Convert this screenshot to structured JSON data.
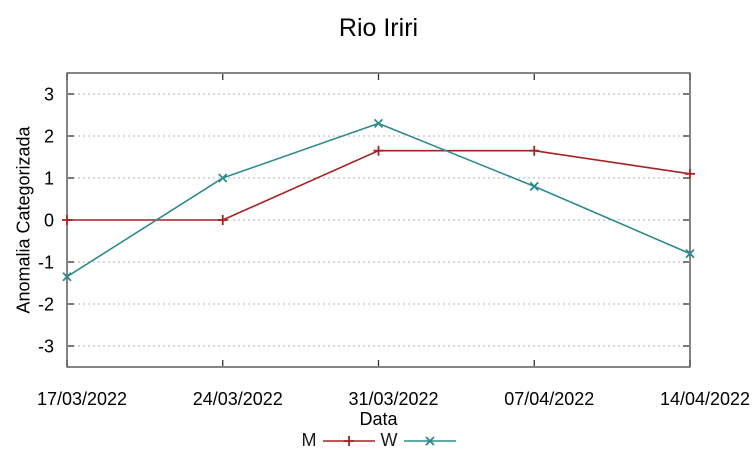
{
  "chart_data": {
    "type": "line",
    "title": "Rio Iriri",
    "xlabel": "Data",
    "ylabel": "Anomalia Categorizada",
    "x_categories": [
      "17/03/2022",
      "24/03/2022",
      "31/03/2022",
      "07/04/2022",
      "14/04/2022"
    ],
    "yticks": [
      -3,
      -2,
      -1,
      0,
      1,
      2,
      3
    ],
    "ylim": [
      -3.5,
      3.5
    ],
    "grid": {
      "horizontal": true,
      "vertical": false,
      "style": "dashed",
      "color": "#b3b3b3"
    },
    "legend_position": "bottom-center",
    "series": [
      {
        "name": "M",
        "color": "#a62121",
        "marker": "plus",
        "values": [
          0,
          0,
          1.65,
          1.65,
          1.1
        ]
      },
      {
        "name": "W",
        "color": "#2e8b8b",
        "marker": "cross",
        "values": [
          -1.35,
          1.0,
          2.3,
          0.8,
          -0.8
        ]
      }
    ],
    "axis_color": "#333333",
    "text_color": "#000000",
    "background": "#ffffff"
  }
}
